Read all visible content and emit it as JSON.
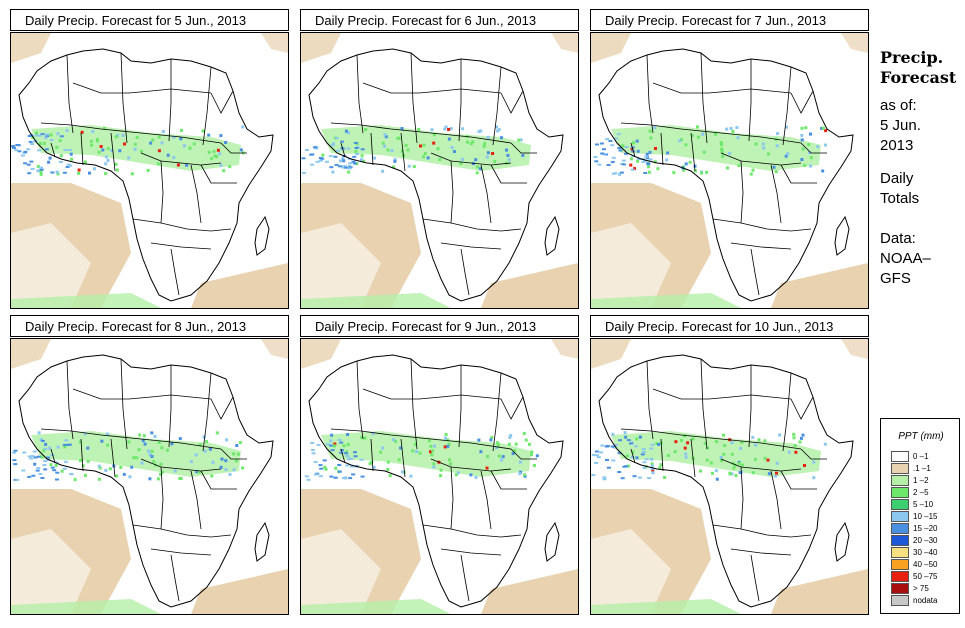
{
  "panels": [
    {
      "title": "Daily Precip. Forecast for  5 Jun., 2013",
      "date": "5 Jun., 2013"
    },
    {
      "title": "Daily Precip. Forecast for  6 Jun., 2013",
      "date": "6 Jun., 2013"
    },
    {
      "title": "Daily Precip. Forecast for  7 Jun., 2013",
      "date": "7 Jun., 2013"
    },
    {
      "title": "Daily Precip. Forecast for  8 Jun., 2013",
      "date": "8 Jun., 2013"
    },
    {
      "title": "Daily Precip. Forecast for  9 Jun., 2013",
      "date": "9 Jun., 2013"
    },
    {
      "title": "Daily Precip. Forecast for  10 Jun., 2013",
      "date": "10 Jun., 2013"
    }
  ],
  "side": {
    "title_line1": "Precip.",
    "title_line2": "Forecast",
    "asof_line1": "as of:",
    "asof_line2": "5 Jun.",
    "asof_line3": "2013",
    "totals_line1": "Daily",
    "totals_line2": "Totals",
    "data_line1": "Data:",
    "data_line2": "NOAA–",
    "data_line3": "GFS"
  },
  "legend": {
    "title": "PPT (mm)",
    "items": [
      {
        "label": "0 –1",
        "color": "#ffffff"
      },
      {
        "label": ".1 –1",
        "color": "#e8d2b0"
      },
      {
        "label": "1 –2",
        "color": "#b4f0a8"
      },
      {
        "label": "2 –5",
        "color": "#6ee86a"
      },
      {
        "label": "5 –10",
        "color": "#3cd070"
      },
      {
        "label": "10 –15",
        "color": "#8cc8f0"
      },
      {
        "label": "15 –20",
        "color": "#4a90e0"
      },
      {
        "label": "20 –30",
        "color": "#1c58d8"
      },
      {
        "label": "30 –40",
        "color": "#f8e080"
      },
      {
        "label": "40 –50",
        "color": "#f8a020"
      },
      {
        "label": "50 –75",
        "color": "#e82010"
      },
      {
        "label": "> 75",
        "color": "#a81010"
      },
      {
        "label": "nodata",
        "color": "#c8c8c8"
      }
    ]
  },
  "colors": {
    "sand": "#e8d2b0",
    "light_green": "#b4f0a8",
    "green": "#6ee86a",
    "blue_light": "#8cc8f0",
    "blue": "#4a90e0",
    "red": "#e82010",
    "orange": "#f8a020"
  }
}
